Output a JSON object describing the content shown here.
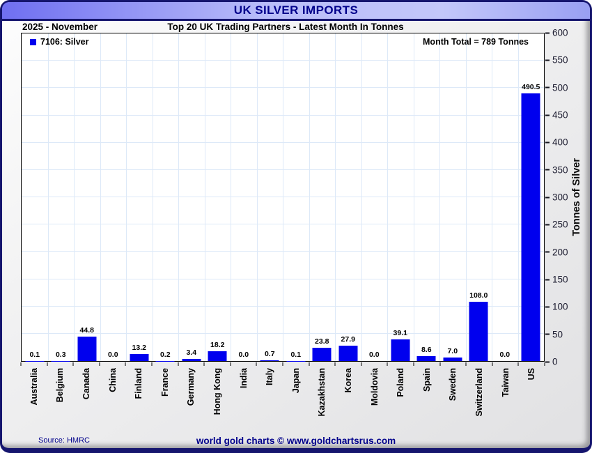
{
  "window": {
    "title": "UK SILVER IMPORTS"
  },
  "header": {
    "period": "2025 - November",
    "subtitle": "Top 20 UK Trading Partners - Latest Month In Tonnes"
  },
  "legend": {
    "swatch_color": "#0000ee",
    "label": "7106: Silver"
  },
  "annotations": {
    "month_total": "Month Total = 789 Tonnes"
  },
  "chart_data": {
    "type": "bar",
    "title": "UK SILVER IMPORTS",
    "subtitle": "Top 20 UK Trading Partners - Latest Month In Tonnes",
    "period": "2025 - November",
    "series_name": "7106: Silver",
    "categories": [
      "Australia",
      "Belgium",
      "Canada",
      "China",
      "Finland",
      "France",
      "Germany",
      "Hong Kong",
      "India",
      "Italy",
      "Japan",
      "Kazakhstan",
      "Korea",
      "Moldovia",
      "Poland",
      "Spain",
      "Sweden",
      "Switzerland",
      "Taiwan",
      "US"
    ],
    "values": [
      0.1,
      0.3,
      44.8,
      0.0,
      13.2,
      0.2,
      3.4,
      18.2,
      0.0,
      0.7,
      0.1,
      23.8,
      27.9,
      0.0,
      39.1,
      8.6,
      7.0,
      108.0,
      0.0,
      490.5
    ],
    "xlabel": "",
    "ylabel": "Tonnes of Silver",
    "ylim": [
      0,
      600
    ],
    "ytick_step": 50,
    "grid": true,
    "legend_position": "top-left",
    "y_axis_side": "right",
    "value_label_decimals": 1,
    "bar_color": "#0000ee",
    "month_total_tonnes": 789
  },
  "footer": {
    "source": "Source: HMRC",
    "credit": "world gold charts © www.goldchartsrus.com"
  },
  "colors": {
    "bar": "#0000ee",
    "navy_text": "#00008b",
    "frame_border": "#15156e",
    "gridline": "#dde9f8",
    "plot_background": "#ffffff",
    "titlebar_gradient_start": "#6f6ff1",
    "titlebar_gradient_mid": "#c3c7fa",
    "titlebar_gradient_end": "#99a0f2"
  }
}
